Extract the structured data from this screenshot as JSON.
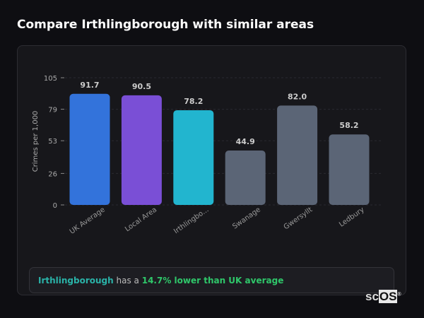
{
  "title": "Compare Irthlingborough with similar areas",
  "chart_data": {
    "type": "bar",
    "ylabel": "Crimes per 1,000",
    "ylim": [
      0,
      105
    ],
    "yticks": [
      0,
      26,
      53,
      79,
      105
    ],
    "grid": true,
    "categories": [
      "UK Average",
      "Local Area",
      "Irthlingbo...",
      "Swanage",
      "Gwersyllt",
      "Ledbury"
    ],
    "values": [
      91.7,
      90.5,
      78.2,
      44.9,
      82.0,
      58.2
    ],
    "value_labels": [
      "91.7",
      "90.5",
      "78.2",
      "44.9",
      "82.0",
      "58.2"
    ],
    "colors": [
      "#3373db",
      "#7a4fd6",
      "#22b5cf",
      "#5b6576",
      "#5b6576",
      "#5b6576"
    ]
  },
  "note": {
    "place": "Irthlingborough",
    "middle": " has a ",
    "comparison": "14.7% lower than UK average"
  },
  "logo": {
    "a": "sc",
    "b": "OS",
    "mark": "®"
  }
}
